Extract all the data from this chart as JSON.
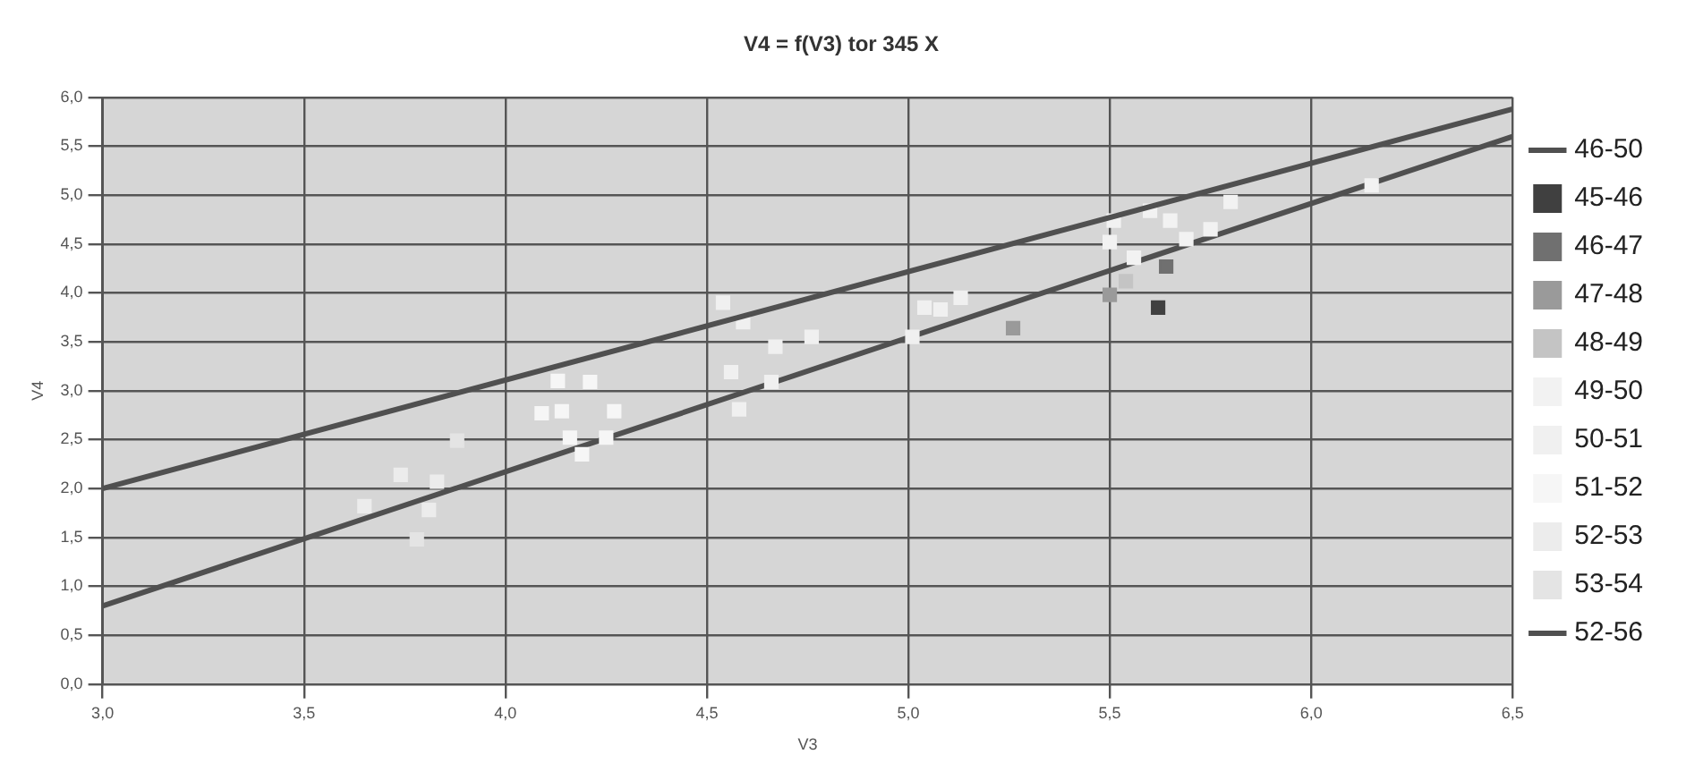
{
  "chart_data": {
    "type": "scatter",
    "title": "V4 = f(V3) tor 345 X",
    "xlabel": "V3",
    "ylabel": "V4",
    "xlim": [
      3.0,
      6.5
    ],
    "xticks": [
      {
        "value": 3.0,
        "label": "3,0"
      },
      {
        "value": 3.5,
        "label": "3,5"
      },
      {
        "value": 4.0,
        "label": "4,0"
      },
      {
        "value": 4.5,
        "label": "4,5"
      },
      {
        "value": 5.0,
        "label": "5,0"
      },
      {
        "value": 5.5,
        "label": "5,5"
      },
      {
        "value": 6.0,
        "label": "6,0"
      },
      {
        "value": 6.5,
        "label": "6,5"
      }
    ],
    "ylim": [
      0,
      6.0
    ],
    "yticks": [
      {
        "value": 0,
        "label": "0,0"
      },
      {
        "value": 0.5,
        "label": "0,5"
      },
      {
        "value": 1.0,
        "label": "1,0"
      },
      {
        "value": 1.5,
        "label": "1,5"
      },
      {
        "value": 2.0,
        "label": "2,0"
      },
      {
        "value": 2.5,
        "label": "2,5"
      },
      {
        "value": 3.0,
        "label": "3,0"
      },
      {
        "value": 3.5,
        "label": "3,5"
      },
      {
        "value": 4.0,
        "label": "4,0"
      },
      {
        "value": 4.5,
        "label": "4,5"
      },
      {
        "value": 5.0,
        "label": "5,0"
      },
      {
        "value": 5.5,
        "label": "5,5"
      },
      {
        "value": 6.0,
        "label": "6,0"
      }
    ],
    "grid": true,
    "legend": "right",
    "marker": "square",
    "series": [
      {
        "name": "46-50",
        "type": "line",
        "marker": "none",
        "color": "#505050",
        "x": [
          3.0,
          6.5
        ],
        "values": [
          2.0,
          5.88
        ]
      },
      {
        "name": "45-46",
        "color": "#404040",
        "x": [
          5.62
        ],
        "values": [
          3.85
        ]
      },
      {
        "name": "46-47",
        "color": "#707070",
        "x": [
          5.64
        ],
        "values": [
          4.27
        ]
      },
      {
        "name": "47-48",
        "color": "#9a9a9a",
        "x": [
          5.5,
          5.26
        ],
        "values": [
          3.98,
          3.64
        ]
      },
      {
        "name": "48-49",
        "color": "#c4c4c4",
        "x": [
          5.54
        ],
        "values": [
          4.12
        ]
      },
      {
        "name": "49-50",
        "color": "#f2f2f2",
        "x": [
          5.5,
          5.56,
          5.51,
          5.65,
          5.69,
          5.75,
          5.6,
          5.8,
          6.15
        ],
        "values": [
          4.52,
          4.36,
          4.74,
          4.74,
          4.55,
          4.65,
          4.84,
          4.93,
          5.1
        ]
      },
      {
        "name": "50-51",
        "color": "#f0f0f0",
        "x": [
          5.01,
          5.08,
          5.13,
          5.04,
          4.56,
          4.58,
          4.66,
          4.67,
          4.76,
          4.59,
          4.54
        ],
        "values": [
          3.55,
          3.83,
          3.95,
          3.85,
          3.19,
          2.81,
          3.09,
          3.45,
          3.55,
          3.7,
          3.9
        ]
      },
      {
        "name": "51-52",
        "color": "#f6f6f6",
        "x": [
          4.09,
          4.16,
          4.19,
          4.25,
          4.21,
          4.27,
          4.14,
          4.13
        ],
        "values": [
          2.77,
          2.52,
          2.35,
          2.52,
          3.09,
          2.79,
          2.79,
          3.1
        ]
      },
      {
        "name": "52-53",
        "color": "#ececec",
        "x": [
          3.65,
          3.74,
          3.83,
          3.81
        ],
        "values": [
          1.82,
          2.14,
          2.07,
          1.78
        ]
      },
      {
        "name": "53-54",
        "color": "#e4e4e4",
        "x": [
          3.78,
          3.88
        ],
        "values": [
          1.48,
          2.49
        ]
      },
      {
        "name": "52-56",
        "type": "line",
        "marker": "none",
        "color": "#505050",
        "x": [
          3.0,
          6.5
        ],
        "values": [
          0.8,
          5.6
        ]
      }
    ]
  }
}
